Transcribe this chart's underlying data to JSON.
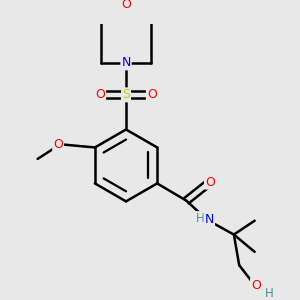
{
  "bg_color": "#e8e8e8",
  "atom_colors": {
    "C": "#000000",
    "H": "#4a9090",
    "N": "#0000ee",
    "O": "#ff0000",
    "S": "#cccc00"
  },
  "bond_color": "#000000",
  "bond_width": 1.8,
  "fig_size": [
    3.0,
    3.0
  ],
  "dpi": 100
}
